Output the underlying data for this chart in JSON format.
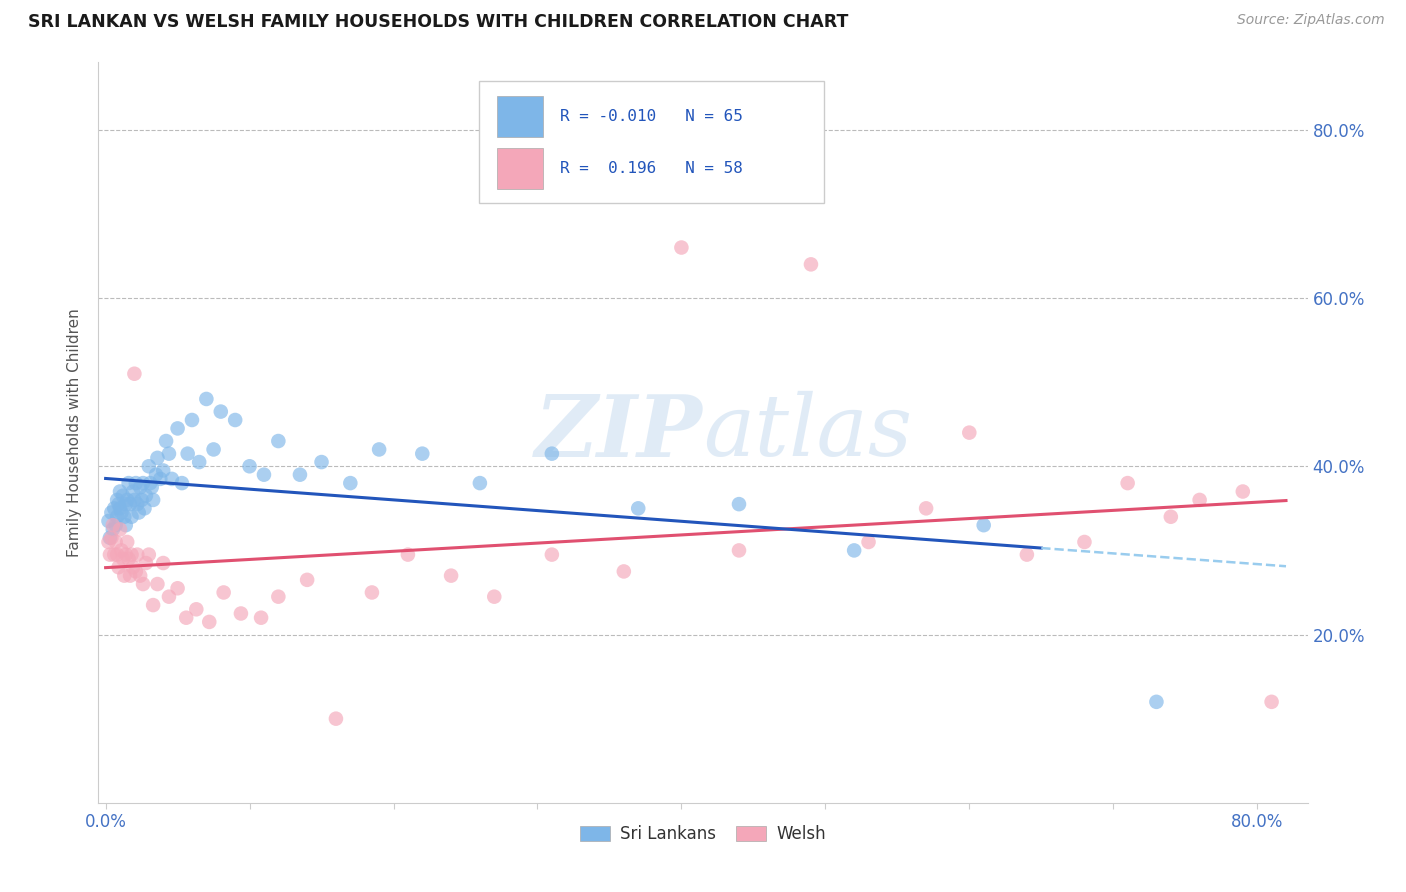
{
  "title": "SRI LANKAN VS WELSH FAMILY HOUSEHOLDS WITH CHILDREN CORRELATION CHART",
  "source": "Source: ZipAtlas.com",
  "ylabel": "Family Households with Children",
  "sri_lankan_color": "#7EB6E8",
  "welsh_color": "#F4A7B9",
  "sri_lankan_line_color": "#2255BB",
  "welsh_line_color": "#E05070",
  "dashed_line_color": "#99CCEE",
  "background_color": "#FFFFFF",
  "grid_color": "#BBBBBB",
  "tick_color": "#4472C4",
  "watermark": "ZIPatlas",
  "legend_r_sri": "-0.010",
  "legend_n_sri": "65",
  "legend_r_welsh": "0.196",
  "legend_n_welsh": "58",
  "sri_lankans_label": "Sri Lankans",
  "welsh_label": "Welsh",
  "xlim": [
    -0.005,
    0.835
  ],
  "ylim": [
    0.0,
    0.88
  ],
  "ytick_vals": [
    0.2,
    0.4,
    0.6,
    0.8
  ],
  "xtick_vals": [
    0.0,
    0.1,
    0.2,
    0.3,
    0.4,
    0.5,
    0.6,
    0.7,
    0.8
  ],
  "sri_lankan_x": [
    0.002,
    0.003,
    0.004,
    0.005,
    0.006,
    0.007,
    0.008,
    0.008,
    0.009,
    0.01,
    0.01,
    0.011,
    0.012,
    0.013,
    0.014,
    0.014,
    0.015,
    0.016,
    0.017,
    0.018,
    0.019,
    0.02,
    0.021,
    0.022,
    0.023,
    0.024,
    0.025,
    0.026,
    0.027,
    0.028,
    0.03,
    0.031,
    0.032,
    0.033,
    0.035,
    0.036,
    0.038,
    0.04,
    0.042,
    0.044,
    0.046,
    0.05,
    0.053,
    0.057,
    0.06,
    0.065,
    0.07,
    0.075,
    0.08,
    0.09,
    0.1,
    0.11,
    0.12,
    0.135,
    0.15,
    0.17,
    0.19,
    0.22,
    0.26,
    0.31,
    0.37,
    0.44,
    0.52,
    0.61,
    0.73
  ],
  "sri_lankan_y": [
    0.335,
    0.315,
    0.345,
    0.325,
    0.35,
    0.33,
    0.36,
    0.34,
    0.355,
    0.37,
    0.35,
    0.345,
    0.365,
    0.34,
    0.355,
    0.33,
    0.36,
    0.38,
    0.355,
    0.34,
    0.37,
    0.36,
    0.38,
    0.355,
    0.345,
    0.375,
    0.36,
    0.38,
    0.35,
    0.365,
    0.4,
    0.38,
    0.375,
    0.36,
    0.39,
    0.41,
    0.385,
    0.395,
    0.43,
    0.415,
    0.385,
    0.445,
    0.38,
    0.415,
    0.455,
    0.405,
    0.48,
    0.42,
    0.465,
    0.455,
    0.4,
    0.39,
    0.43,
    0.39,
    0.405,
    0.38,
    0.42,
    0.415,
    0.38,
    0.415,
    0.35,
    0.355,
    0.3,
    0.33,
    0.12
  ],
  "welsh_x": [
    0.002,
    0.003,
    0.004,
    0.005,
    0.006,
    0.007,
    0.008,
    0.009,
    0.01,
    0.011,
    0.012,
    0.013,
    0.014,
    0.015,
    0.016,
    0.017,
    0.018,
    0.019,
    0.02,
    0.021,
    0.022,
    0.024,
    0.026,
    0.028,
    0.03,
    0.033,
    0.036,
    0.04,
    0.044,
    0.05,
    0.056,
    0.063,
    0.072,
    0.082,
    0.094,
    0.108,
    0.12,
    0.14,
    0.16,
    0.185,
    0.21,
    0.24,
    0.27,
    0.31,
    0.36,
    0.4,
    0.44,
    0.49,
    0.53,
    0.57,
    0.6,
    0.64,
    0.68,
    0.71,
    0.74,
    0.76,
    0.79,
    0.81
  ],
  "welsh_y": [
    0.31,
    0.295,
    0.315,
    0.33,
    0.295,
    0.31,
    0.295,
    0.28,
    0.325,
    0.3,
    0.29,
    0.27,
    0.295,
    0.31,
    0.29,
    0.27,
    0.295,
    0.28,
    0.51,
    0.275,
    0.295,
    0.27,
    0.26,
    0.285,
    0.295,
    0.235,
    0.26,
    0.285,
    0.245,
    0.255,
    0.22,
    0.23,
    0.215,
    0.25,
    0.225,
    0.22,
    0.245,
    0.265,
    0.1,
    0.25,
    0.295,
    0.27,
    0.245,
    0.295,
    0.275,
    0.66,
    0.3,
    0.64,
    0.31,
    0.35,
    0.44,
    0.295,
    0.31,
    0.38,
    0.34,
    0.36,
    0.37,
    0.12
  ]
}
